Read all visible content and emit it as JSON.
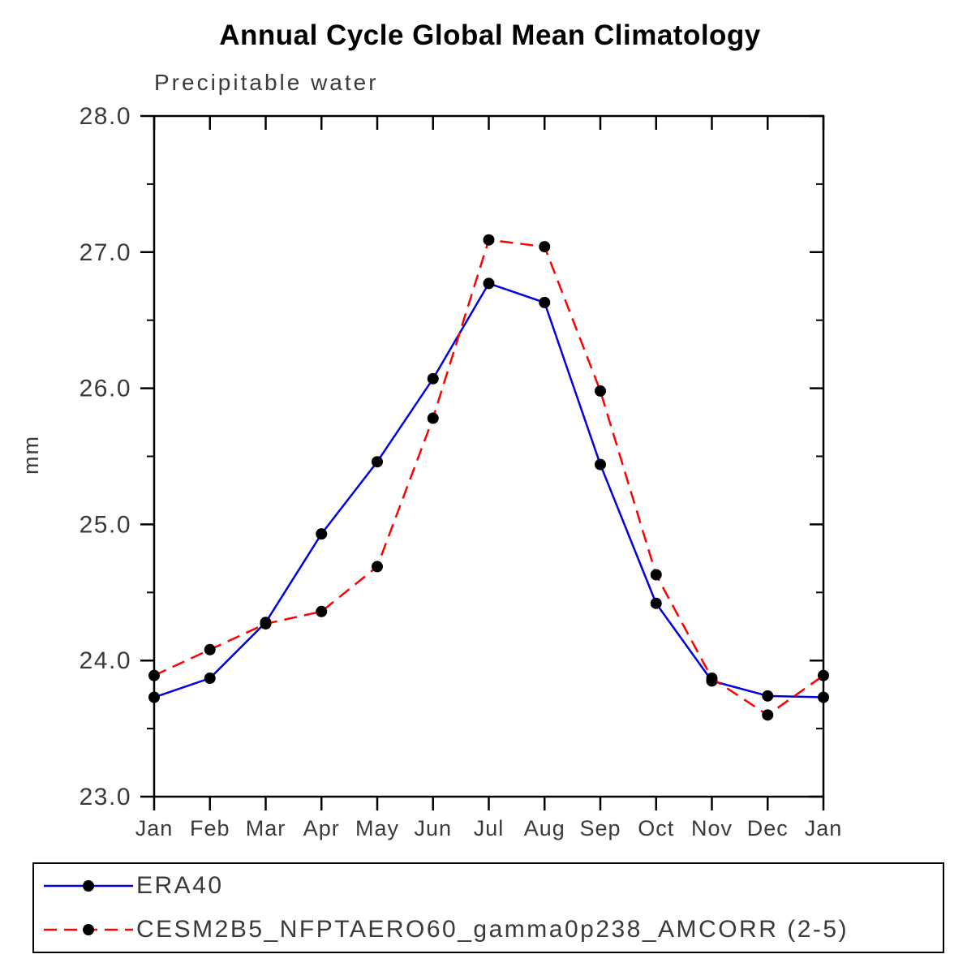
{
  "title": "Annual Cycle Global Mean Climatology",
  "subtitle": "Precipitable water",
  "ylabel": "mm",
  "chart_data": {
    "type": "line",
    "categories": [
      "Jan",
      "Feb",
      "Mar",
      "Apr",
      "May",
      "Jun",
      "Jul",
      "Aug",
      "Sep",
      "Oct",
      "Nov",
      "Dec",
      "Jan"
    ],
    "series": [
      {
        "name": "ERA40",
        "color": "#0000e0",
        "line_style": "solid",
        "values": [
          23.73,
          23.87,
          24.28,
          24.93,
          25.46,
          26.07,
          26.77,
          26.63,
          25.44,
          24.42,
          23.85,
          23.74,
          23.73
        ]
      },
      {
        "name": "CESM2B5_NFPTAERO60_gamma0p238_AMCORR (2-5)",
        "color": "#ff0000",
        "line_style": "dashed",
        "values": [
          23.89,
          24.08,
          24.27,
          24.36,
          24.69,
          25.78,
          27.09,
          27.04,
          25.98,
          24.63,
          23.87,
          23.6,
          23.89
        ]
      }
    ],
    "marker": "filled-circle",
    "marker_color": "#000000",
    "ylim": [
      23.0,
      28.0
    ],
    "ytick_major": 1.0,
    "ytick_minor": 0.5,
    "ytick_label_format": "one-decimal",
    "grid": false,
    "legend_position": "bottom"
  }
}
